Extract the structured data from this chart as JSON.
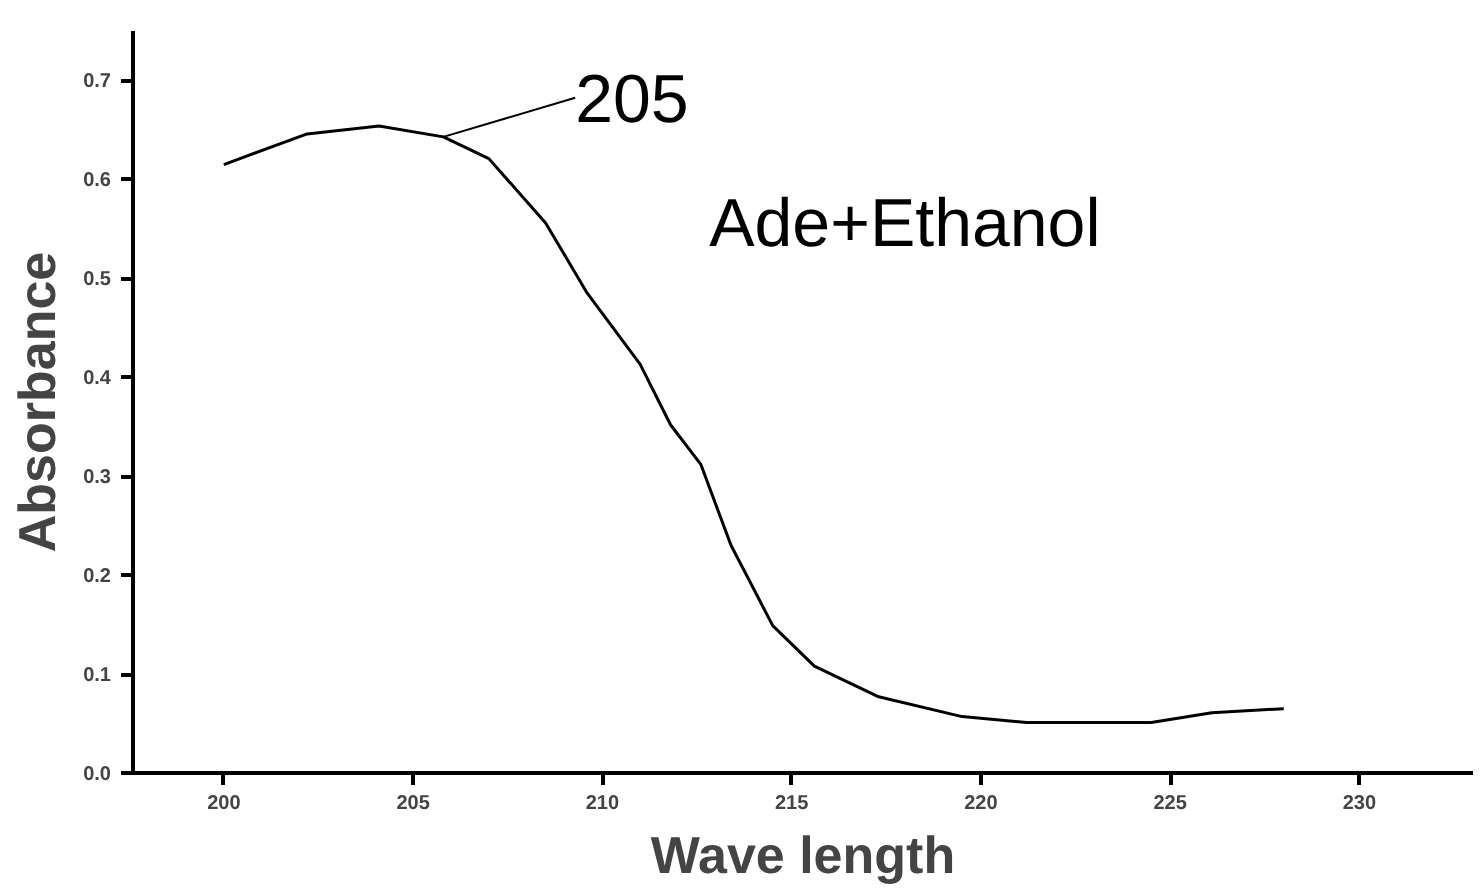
{
  "chart_data": {
    "type": "line",
    "xlabel": "Wave length",
    "ylabel": "Absorbance",
    "x": [
      200,
      202.2,
      204.1,
      205.8,
      207.0,
      208.5,
      209.6,
      211.0,
      211.8,
      212.6,
      213.4,
      214.5,
      215.6,
      217.3,
      219.5,
      221.2,
      224.5,
      226.1,
      228.0
    ],
    "series": [
      {
        "color": "#000000",
        "values": [
          0.615,
          0.646,
          0.654,
          0.643,
          0.621,
          0.556,
          0.485,
          0.413,
          0.352,
          0.312,
          0.23,
          0.149,
          0.108,
          0.077,
          0.057,
          0.051,
          0.051,
          0.061,
          0.065
        ]
      }
    ],
    "xlim": [
      197.6,
      233
    ],
    "ylim": [
      0,
      0.75
    ],
    "xticks": [
      200,
      205,
      210,
      215,
      220,
      225,
      230
    ],
    "yticks": [
      {
        "value": 0,
        "label": "0.0"
      },
      0.1,
      0.2,
      0.3,
      0.4,
      0.5,
      0.6,
      0.7
    ],
    "annotations": [
      {
        "text": "205",
        "x": 205.8,
        "y": 0.643
      },
      "Ade+Ethanol"
    ],
    "grid": false,
    "marker": "none",
    "line_style": "solid"
  }
}
